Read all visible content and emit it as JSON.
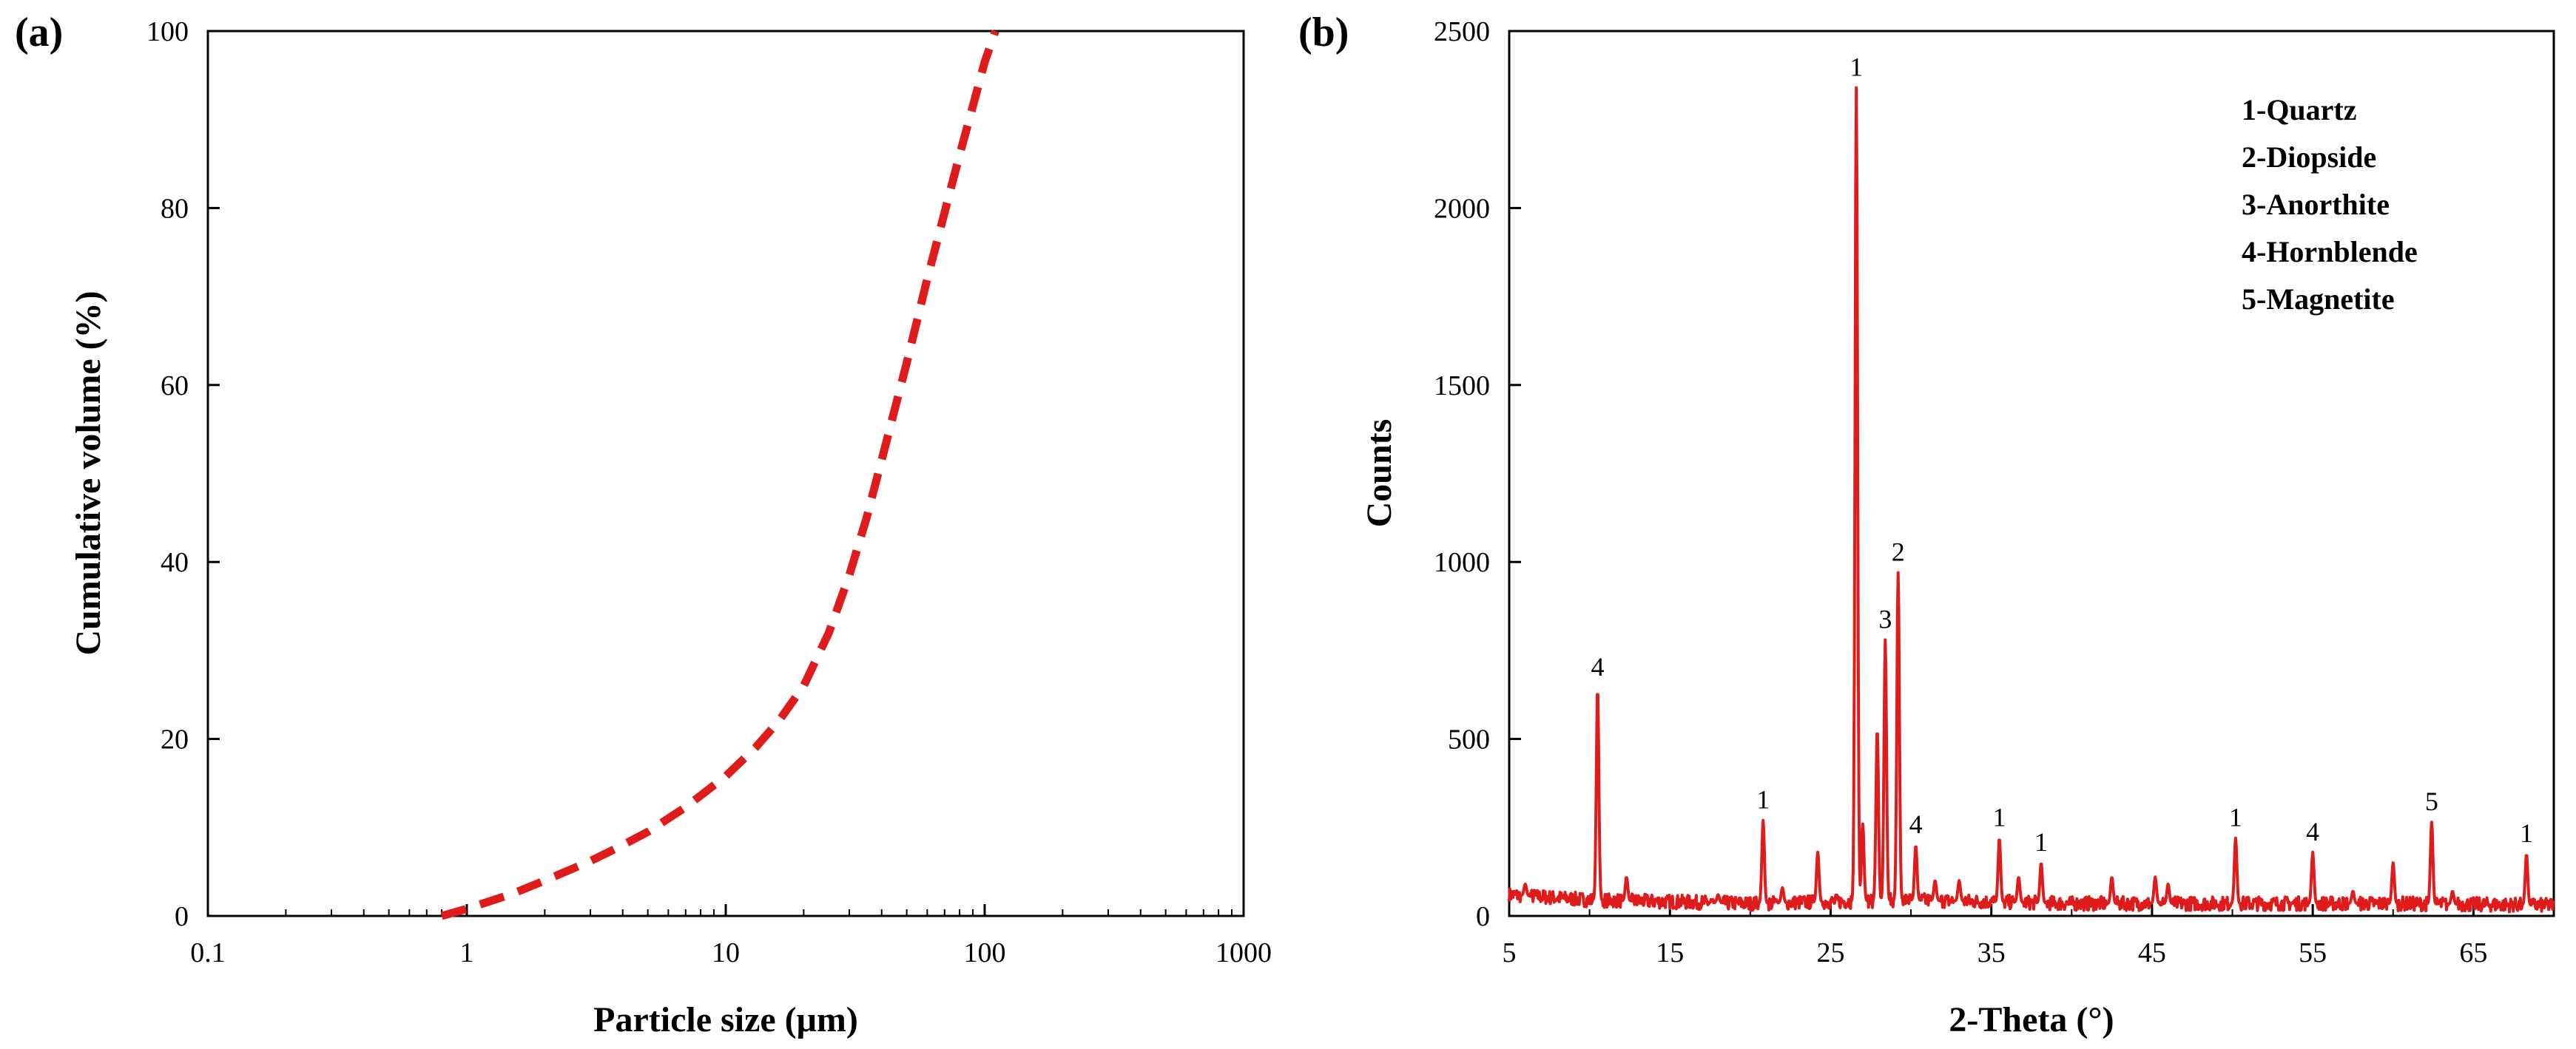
{
  "chart_data": [
    {
      "panel": "(a)",
      "type": "line",
      "xscale": "log",
      "xlabel": "Particle size (μm)",
      "ylabel": "Cumulative volume (%)",
      "xlim": [
        0.1,
        1000
      ],
      "ylim": [
        0,
        100
      ],
      "xticks": [
        0.1,
        1,
        10,
        100,
        1000
      ],
      "xtick_labels": [
        "0.1",
        "1",
        "10",
        "100",
        "1000"
      ],
      "yticks": [
        0,
        20,
        40,
        60,
        80,
        100
      ],
      "ytick_labels": [
        "0",
        "20",
        "40",
        "60",
        "80",
        "100"
      ],
      "line_color": "#e01b1b",
      "line_style": "dashed",
      "series": [
        {
          "name": "Cumulative volume",
          "x": [
            0.8,
            1,
            1.5,
            2,
            3,
            4,
            5,
            7,
            10,
            13,
            16,
            20,
            25,
            30,
            35,
            40,
            50,
            60,
            70,
            80,
            90,
            100,
            110
          ],
          "y": [
            0,
            0.8,
            2.5,
            4.0,
            6.2,
            8.0,
            9.5,
            12.3,
            15.8,
            19.0,
            22.0,
            26.0,
            32.0,
            38.5,
            45.0,
            51.5,
            62.5,
            72.0,
            79.5,
            86.0,
            91.5,
            96.5,
            100
          ]
        }
      ]
    },
    {
      "panel": "(b)",
      "type": "line",
      "xlabel": "2-Theta (°)",
      "ylabel": "Counts",
      "xlim": [
        5,
        70
      ],
      "ylim": [
        0,
        2500
      ],
      "xticks": [
        5,
        15,
        25,
        35,
        45,
        55,
        65
      ],
      "xtick_labels": [
        "5",
        "15",
        "25",
        "35",
        "45",
        "55",
        "65"
      ],
      "yticks": [
        0,
        500,
        1000,
        1500,
        2000,
        2500
      ],
      "ytick_labels": [
        "0",
        "500",
        "1000",
        "1500",
        "2000",
        "2500"
      ],
      "line_color": "#e01b1b",
      "legend": [
        "1-Quartz",
        "2-Diopside",
        "3-Anorthite",
        "4-Hornblende",
        "5-Magnetite"
      ],
      "legend_position": "top-right",
      "peaks": [
        {
          "x": 10.5,
          "y": 645,
          "label": "4"
        },
        {
          "x": 20.8,
          "y": 270,
          "label": "1"
        },
        {
          "x": 26.6,
          "y": 2340,
          "label": "1"
        },
        {
          "x": 28.4,
          "y": 780,
          "label": "3"
        },
        {
          "x": 29.2,
          "y": 970,
          "label": "2"
        },
        {
          "x": 30.3,
          "y": 200,
          "label": "4"
        },
        {
          "x": 35.5,
          "y": 220,
          "label": "1"
        },
        {
          "x": 38.1,
          "y": 150,
          "label": "1"
        },
        {
          "x": 50.2,
          "y": 220,
          "label": "1"
        },
        {
          "x": 55.0,
          "y": 180,
          "label": "4"
        },
        {
          "x": 62.4,
          "y": 265,
          "label": "5"
        },
        {
          "x": 68.3,
          "y": 175,
          "label": "1"
        }
      ],
      "minor_peaks": [
        {
          "x": 6.0,
          "y": 90
        },
        {
          "x": 12.3,
          "y": 110
        },
        {
          "x": 18.0,
          "y": 60
        },
        {
          "x": 22.0,
          "y": 80
        },
        {
          "x": 24.2,
          "y": 180
        },
        {
          "x": 27.0,
          "y": 260
        },
        {
          "x": 27.9,
          "y": 530
        },
        {
          "x": 31.5,
          "y": 100
        },
        {
          "x": 33.0,
          "y": 100
        },
        {
          "x": 36.7,
          "y": 110
        },
        {
          "x": 42.5,
          "y": 110
        },
        {
          "x": 45.2,
          "y": 110
        },
        {
          "x": 46.0,
          "y": 90
        },
        {
          "x": 57.5,
          "y": 70
        },
        {
          "x": 60.0,
          "y": 150
        },
        {
          "x": 63.7,
          "y": 70
        }
      ],
      "baseline": [
        {
          "x": 5,
          "y": 60
        },
        {
          "x": 10,
          "y": 45
        },
        {
          "x": 20,
          "y": 35
        },
        {
          "x": 30,
          "y": 45
        },
        {
          "x": 40,
          "y": 35
        },
        {
          "x": 50,
          "y": 35
        },
        {
          "x": 60,
          "y": 35
        },
        {
          "x": 70,
          "y": 30
        }
      ]
    }
  ]
}
